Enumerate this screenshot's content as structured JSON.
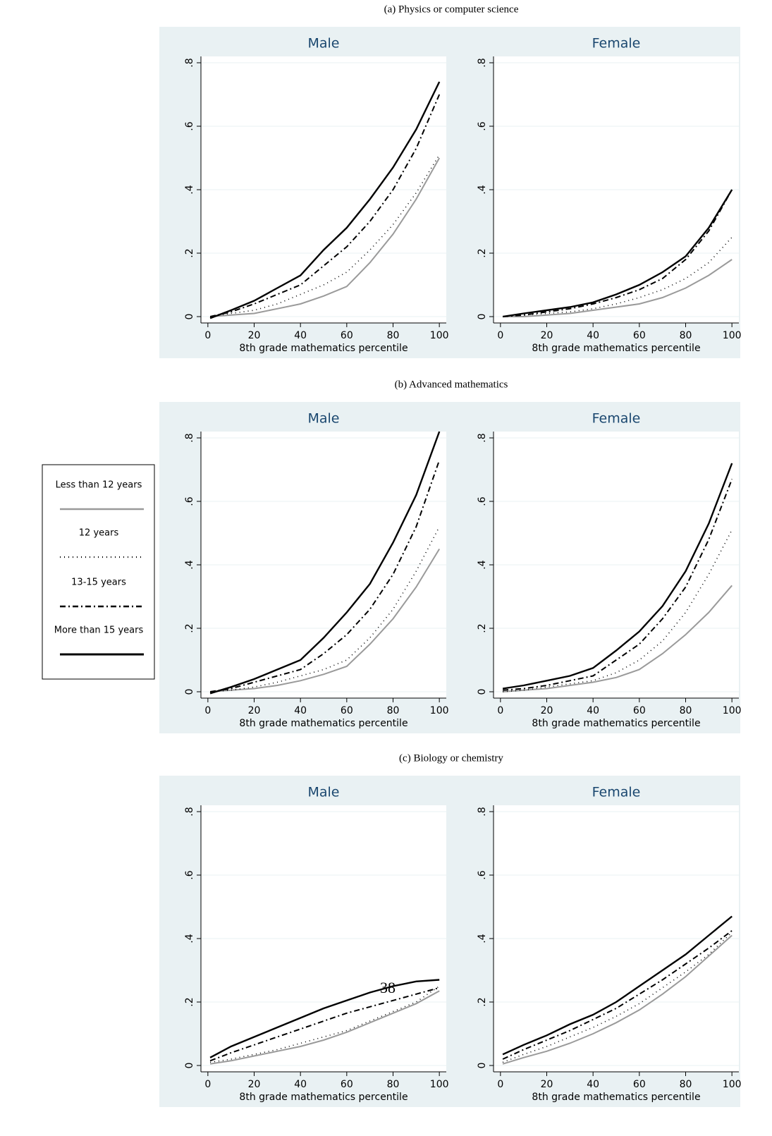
{
  "sections": [
    "(a) Physics or computer science",
    "(b) Advanced mathematics",
    "(c) Biology or chemistry"
  ],
  "page_number": "38",
  "legend": [
    {
      "name": "Less than 12 years",
      "color": "#9a9a9a",
      "dash": "none",
      "width": 2
    },
    {
      "name": "12 years",
      "color": "#000000",
      "dash": "1,5",
      "width": 1.6
    },
    {
      "name": "13-15 years",
      "color": "#000000",
      "dash": "8,4,2,4",
      "width": 2
    },
    {
      "name": "More than 15 years",
      "color": "#000000",
      "dash": "none",
      "width": 2.4
    }
  ],
  "chart_data": [
    {
      "type": "line",
      "title": "Male",
      "xlabel": "8th grade mathematics percentile",
      "x": [
        1,
        10,
        20,
        30,
        40,
        50,
        60,
        70,
        80,
        90,
        100
      ],
      "series": [
        {
          "values": [
            0,
            0.005,
            0.01,
            0.025,
            0.04,
            0.065,
            0.095,
            0.17,
            0.26,
            0.37,
            0.5
          ]
        },
        {
          "values": [
            0,
            0.01,
            0.02,
            0.04,
            0.07,
            0.1,
            0.14,
            0.21,
            0.29,
            0.39,
            0.51
          ]
        },
        {
          "values": [
            0,
            0.015,
            0.04,
            0.07,
            0.1,
            0.16,
            0.22,
            0.3,
            0.4,
            0.53,
            0.7
          ]
        },
        {
          "values": [
            -0.005,
            0.02,
            0.05,
            0.09,
            0.13,
            0.21,
            0.28,
            0.37,
            0.47,
            0.59,
            0.74
          ]
        }
      ],
      "xlim": [
        -3,
        103
      ],
      "xticks": [
        0,
        20,
        40,
        60,
        80,
        100
      ],
      "ylim": [
        -0.02,
        0.82
      ],
      "yticks": [
        0,
        {
          "value": 0.2,
          "label": ".2"
        },
        {
          "value": 0.4,
          "label": ".4"
        },
        {
          "value": 0.6,
          "label": ".6"
        },
        {
          "value": 0.8,
          "label": ".8"
        }
      ],
      "grid": true
    },
    {
      "type": "line",
      "title": "Female",
      "xlabel": "8th grade mathematics percentile",
      "x": [
        1,
        10,
        20,
        30,
        40,
        50,
        60,
        70,
        80,
        90,
        100
      ],
      "series": [
        {
          "values": [
            0,
            0,
            0.005,
            0.01,
            0.02,
            0.03,
            0.04,
            0.06,
            0.09,
            0.13,
            0.18
          ]
        },
        {
          "values": [
            0,
            0.005,
            0.01,
            0.015,
            0.025,
            0.04,
            0.06,
            0.085,
            0.12,
            0.17,
            0.25
          ]
        },
        {
          "values": [
            0,
            0.005,
            0.015,
            0.025,
            0.04,
            0.06,
            0.085,
            0.12,
            0.18,
            0.27,
            0.4
          ]
        },
        {
          "values": [
            0,
            0.01,
            0.02,
            0.03,
            0.045,
            0.07,
            0.1,
            0.14,
            0.19,
            0.28,
            0.4
          ]
        }
      ],
      "xlim": [
        -3,
        103
      ],
      "xticks": [
        0,
        20,
        40,
        60,
        80,
        100
      ],
      "ylim": [
        -0.02,
        0.82
      ],
      "yticks": [
        0,
        {
          "value": 0.2,
          "label": ".2"
        },
        {
          "value": 0.4,
          "label": ".4"
        },
        {
          "value": 0.6,
          "label": ".6"
        },
        {
          "value": 0.8,
          "label": ".8"
        }
      ],
      "grid": true
    },
    {
      "type": "line",
      "title": "Male",
      "xlabel": "8th grade mathematics percentile",
      "x": [
        1,
        10,
        20,
        30,
        40,
        50,
        60,
        70,
        80,
        90,
        100
      ],
      "series": [
        {
          "values": [
            0,
            0.005,
            0.01,
            0.02,
            0.035,
            0.055,
            0.08,
            0.15,
            0.23,
            0.33,
            0.45
          ]
        },
        {
          "values": [
            0,
            0.005,
            0.015,
            0.03,
            0.05,
            0.07,
            0.1,
            0.17,
            0.26,
            0.38,
            0.52
          ]
        },
        {
          "values": [
            0,
            0.01,
            0.03,
            0.05,
            0.07,
            0.12,
            0.18,
            0.26,
            0.37,
            0.52,
            0.73
          ]
        },
        {
          "values": [
            -0.005,
            0.015,
            0.04,
            0.07,
            0.1,
            0.17,
            0.25,
            0.34,
            0.47,
            0.62,
            0.82
          ]
        }
      ],
      "xlim": [
        -3,
        103
      ],
      "xticks": [
        0,
        20,
        40,
        60,
        80,
        100
      ],
      "ylim": [
        -0.02,
        0.82
      ],
      "yticks": [
        0,
        {
          "value": 0.2,
          "label": ".2"
        },
        {
          "value": 0.4,
          "label": ".4"
        },
        {
          "value": 0.6,
          "label": ".6"
        },
        {
          "value": 0.8,
          "label": ".8"
        }
      ],
      "grid": true
    },
    {
      "type": "line",
      "title": "Female",
      "xlabel": "8th grade mathematics percentile",
      "x": [
        1,
        10,
        20,
        30,
        40,
        50,
        60,
        70,
        80,
        90,
        100
      ],
      "series": [
        {
          "values": [
            0,
            0.005,
            0.01,
            0.02,
            0.03,
            0.045,
            0.07,
            0.12,
            0.18,
            0.25,
            0.335
          ]
        },
        {
          "values": [
            0,
            0.005,
            0.015,
            0.025,
            0.035,
            0.06,
            0.1,
            0.16,
            0.25,
            0.37,
            0.51
          ]
        },
        {
          "values": [
            0.005,
            0.01,
            0.02,
            0.035,
            0.05,
            0.1,
            0.15,
            0.23,
            0.33,
            0.48,
            0.67
          ]
        },
        {
          "values": [
            0.01,
            0.02,
            0.035,
            0.05,
            0.075,
            0.13,
            0.19,
            0.27,
            0.38,
            0.53,
            0.72
          ]
        }
      ],
      "xlim": [
        -3,
        103
      ],
      "xticks": [
        0,
        20,
        40,
        60,
        80,
        100
      ],
      "ylim": [
        -0.02,
        0.82
      ],
      "yticks": [
        0,
        {
          "value": 0.2,
          "label": ".2"
        },
        {
          "value": 0.4,
          "label": ".4"
        },
        {
          "value": 0.6,
          "label": ".6"
        },
        {
          "value": 0.8,
          "label": ".8"
        }
      ],
      "grid": true
    },
    {
      "type": "line",
      "title": "Male",
      "xlabel": "8th grade mathematics percentile",
      "x": [
        1,
        10,
        20,
        30,
        40,
        50,
        60,
        70,
        80,
        90,
        100
      ],
      "series": [
        {
          "values": [
            0.005,
            0.015,
            0.03,
            0.045,
            0.06,
            0.08,
            0.105,
            0.135,
            0.165,
            0.195,
            0.235
          ]
        },
        {
          "values": [
            0.01,
            0.02,
            0.035,
            0.05,
            0.07,
            0.09,
            0.11,
            0.14,
            0.17,
            0.2,
            0.25
          ]
        },
        {
          "values": [
            0.015,
            0.04,
            0.065,
            0.09,
            0.115,
            0.14,
            0.165,
            0.185,
            0.205,
            0.225,
            0.245
          ]
        },
        {
          "values": [
            0.025,
            0.06,
            0.09,
            0.12,
            0.15,
            0.18,
            0.205,
            0.23,
            0.25,
            0.265,
            0.27
          ]
        }
      ],
      "xlim": [
        -3,
        103
      ],
      "xticks": [
        0,
        20,
        40,
        60,
        80,
        100
      ],
      "ylim": [
        -0.02,
        0.82
      ],
      "yticks": [
        0,
        {
          "value": 0.2,
          "label": ".2"
        },
        {
          "value": 0.4,
          "label": ".4"
        },
        {
          "value": 0.6,
          "label": ".6"
        },
        {
          "value": 0.8,
          "label": ".8"
        }
      ],
      "grid": true
    },
    {
      "type": "line",
      "title": "Female",
      "xlabel": "8th grade mathematics percentile",
      "x": [
        1,
        10,
        20,
        30,
        40,
        50,
        60,
        70,
        80,
        90,
        100
      ],
      "series": [
        {
          "values": [
            0.005,
            0.025,
            0.045,
            0.07,
            0.1,
            0.135,
            0.175,
            0.225,
            0.28,
            0.345,
            0.41
          ]
        },
        {
          "values": [
            0.01,
            0.035,
            0.06,
            0.09,
            0.12,
            0.155,
            0.195,
            0.245,
            0.295,
            0.35,
            0.42
          ]
        },
        {
          "values": [
            0.02,
            0.05,
            0.08,
            0.11,
            0.145,
            0.18,
            0.225,
            0.27,
            0.32,
            0.37,
            0.425
          ]
        },
        {
          "values": [
            0.035,
            0.065,
            0.095,
            0.13,
            0.16,
            0.2,
            0.25,
            0.3,
            0.35,
            0.41,
            0.47
          ]
        }
      ],
      "xlim": [
        -3,
        103
      ],
      "xticks": [
        0,
        20,
        40,
        60,
        80,
        100
      ],
      "ylim": [
        -0.02,
        0.82
      ],
      "yticks": [
        0,
        {
          "value": 0.2,
          "label": ".2"
        },
        {
          "value": 0.4,
          "label": ".4"
        },
        {
          "value": 0.6,
          "label": ".6"
        },
        {
          "value": 0.8,
          "label": ".8"
        }
      ],
      "grid": true
    }
  ]
}
